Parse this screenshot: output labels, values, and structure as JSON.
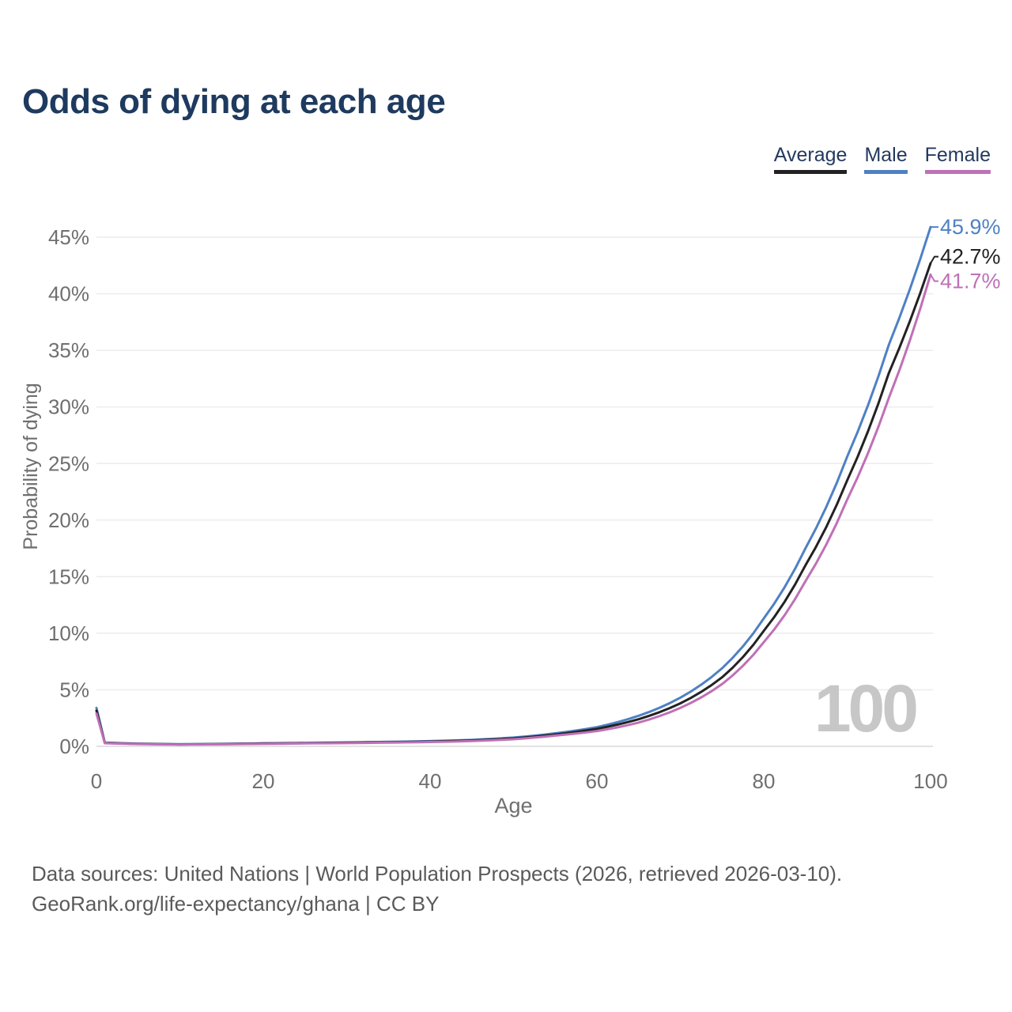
{
  "header": {
    "title": "Odds of dying at each age",
    "title_color": "#1e3a5f"
  },
  "legend": {
    "items": [
      {
        "label": "Average",
        "color": "#222222"
      },
      {
        "label": "Male",
        "color": "#4f80c4"
      },
      {
        "label": "Female",
        "color": "#bf70b6"
      }
    ]
  },
  "chart_data": {
    "type": "line",
    "title": "Odds of dying at each age",
    "xlabel": "Age",
    "ylabel": "Probability of dying",
    "xlim": [
      0,
      100
    ],
    "ylim_percent": [
      0,
      46
    ],
    "x_ticks": [
      0,
      20,
      40,
      60,
      80,
      100
    ],
    "y_ticks_percent": [
      0,
      5,
      10,
      15,
      20,
      25,
      30,
      35,
      40,
      45
    ],
    "y_tick_suffix": "%",
    "grid": true,
    "legend_position": "top-right",
    "watermark": "100",
    "x": [
      0,
      1,
      5,
      10,
      15,
      20,
      25,
      30,
      35,
      40,
      45,
      50,
      55,
      60,
      65,
      70,
      75,
      80,
      85,
      90,
      95,
      100
    ],
    "series": [
      {
        "name": "Average",
        "color": "#222222",
        "end_label": "42.7%",
        "values": [
          3.15,
          0.3,
          0.22,
          0.17,
          0.2,
          0.25,
          0.28,
          0.32,
          0.36,
          0.42,
          0.52,
          0.7,
          1.05,
          1.55,
          2.4,
          3.8,
          6.1,
          10.2,
          16.0,
          23.5,
          33.0,
          42.7
        ]
      },
      {
        "name": "Male",
        "color": "#4f80c4",
        "end_label": "45.9%",
        "values": [
          3.4,
          0.33,
          0.24,
          0.19,
          0.22,
          0.27,
          0.31,
          0.35,
          0.4,
          0.46,
          0.57,
          0.78,
          1.15,
          1.7,
          2.7,
          4.3,
          6.9,
          11.3,
          17.5,
          25.6,
          35.5,
          45.9
        ]
      },
      {
        "name": "Female",
        "color": "#bf70b6",
        "end_label": "41.7%",
        "values": [
          2.9,
          0.28,
          0.2,
          0.16,
          0.18,
          0.22,
          0.26,
          0.29,
          0.33,
          0.38,
          0.47,
          0.63,
          0.95,
          1.35,
          2.1,
          3.4,
          5.5,
          9.2,
          14.6,
          21.8,
          30.8,
          41.7
        ]
      }
    ],
    "colors": {
      "gridline": "#ececec",
      "zero_line": "#e2e2e2",
      "tick_text": "#6f6f6f",
      "watermark": "#c7c7c7"
    }
  },
  "footer": {
    "line1": "Data sources: United Nations | World Population Prospects (2026, retrieved 2026-03-10).",
    "line2": "GeoRank.org/life-expectancy/ghana | CC BY"
  }
}
